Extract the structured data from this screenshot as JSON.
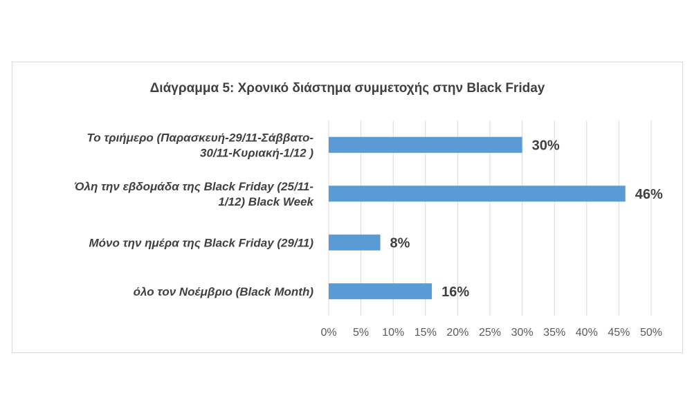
{
  "chart_data": {
    "type": "bar",
    "orientation": "horizontal",
    "title": "Διάγραμμα 5: Χρονικό διάστημα συμμετοχής στην Black Friday",
    "categories": [
      [
        "Το τριήμερο (Παρασκευή-29/11-Σάββατο-",
        "30/11-Κυριακή-1/12 )"
      ],
      [
        "Όλη την εβδομάδα της Black Friday (25/11-",
        "1/12) Black Week"
      ],
      [
        "Μόνο την ημέρα της Black Friday (29/11)"
      ],
      [
        "όλο τον Νοέμβριο (Black Month)"
      ]
    ],
    "values": [
      30,
      46,
      8,
      16
    ],
    "value_labels": [
      "30%",
      "46%",
      "8%",
      "16%"
    ],
    "xlim": [
      0,
      50
    ],
    "ticks": [
      "0%",
      "5%",
      "10%",
      "15%",
      "20%",
      "25%",
      "30%",
      "35%",
      "40%",
      "45%",
      "50%"
    ],
    "grid": true,
    "bar_color": "#5b9bd5",
    "grid_color": "#d9d9d9"
  }
}
